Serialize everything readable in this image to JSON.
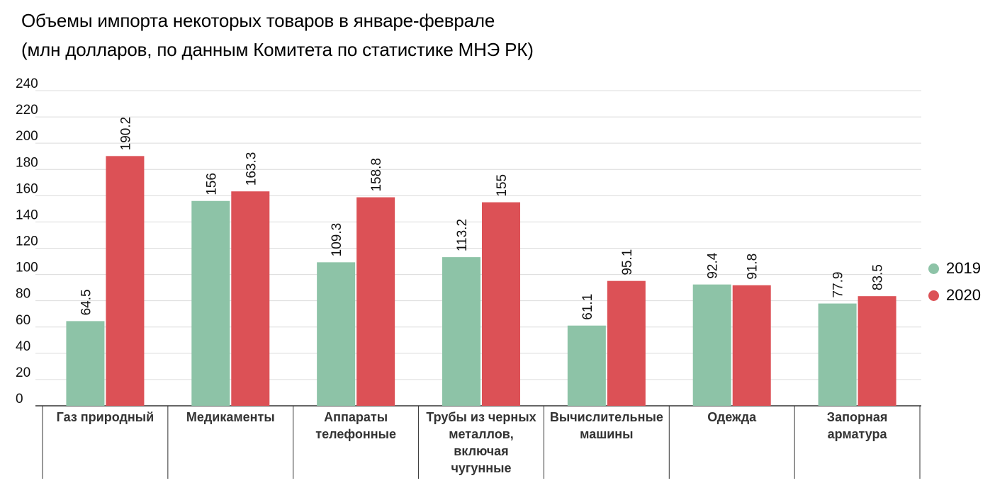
{
  "header": {
    "title_line1": "Объемы импорта некоторых товаров в январе-феврале",
    "title_line2": "(млн долларов, по данным Комитета по статистике МНЭ РК)"
  },
  "colors": {
    "s2019": "#8dc3a7",
    "s2020": "#dc5156",
    "grid": "#dcdcdc",
    "axis": "#333333"
  },
  "chart_data": {
    "type": "bar",
    "title": "Объемы импорта некоторых товаров в январе-феврале (млн долларов, по данным Комитета по статистике МНЭ РК)",
    "categories": [
      "Газ природный",
      "Медикаменты",
      "Аппараты телефонные",
      "Трубы из черных металлов, включая чугунные",
      "Вычислительные машины",
      "Одежда",
      "Запорная арматура"
    ],
    "category_lines": [
      [
        "Газ природный"
      ],
      [
        "Медикаменты"
      ],
      [
        "Аппараты",
        "телефонные"
      ],
      [
        "Трубы из черных",
        "металлов,",
        "включая",
        "чугунные"
      ],
      [
        "Вычислительные",
        "машины"
      ],
      [
        "Одежда"
      ],
      [
        "Запорная",
        "арматура"
      ]
    ],
    "series": [
      {
        "name": "2019",
        "values": [
          64.5,
          156,
          109.3,
          113.2,
          61.1,
          92.4,
          77.9
        ],
        "labels": [
          "64.5",
          "156",
          "109.3",
          "113.2",
          "61.1",
          "92.4",
          "77.9"
        ]
      },
      {
        "name": "2020",
        "values": [
          190.2,
          163.3,
          158.8,
          155,
          95.1,
          91.8,
          83.5
        ],
        "labels": [
          "190.2",
          "163.3",
          "158.8",
          "155",
          "95.1",
          "91.8",
          "83.5"
        ]
      }
    ],
    "ylim": [
      0,
      240
    ],
    "yticks": [
      0,
      20,
      40,
      60,
      80,
      100,
      120,
      140,
      160,
      180,
      200,
      220,
      240
    ],
    "xlabel": "",
    "ylabel": "",
    "grid": true,
    "legend_position": "right"
  }
}
